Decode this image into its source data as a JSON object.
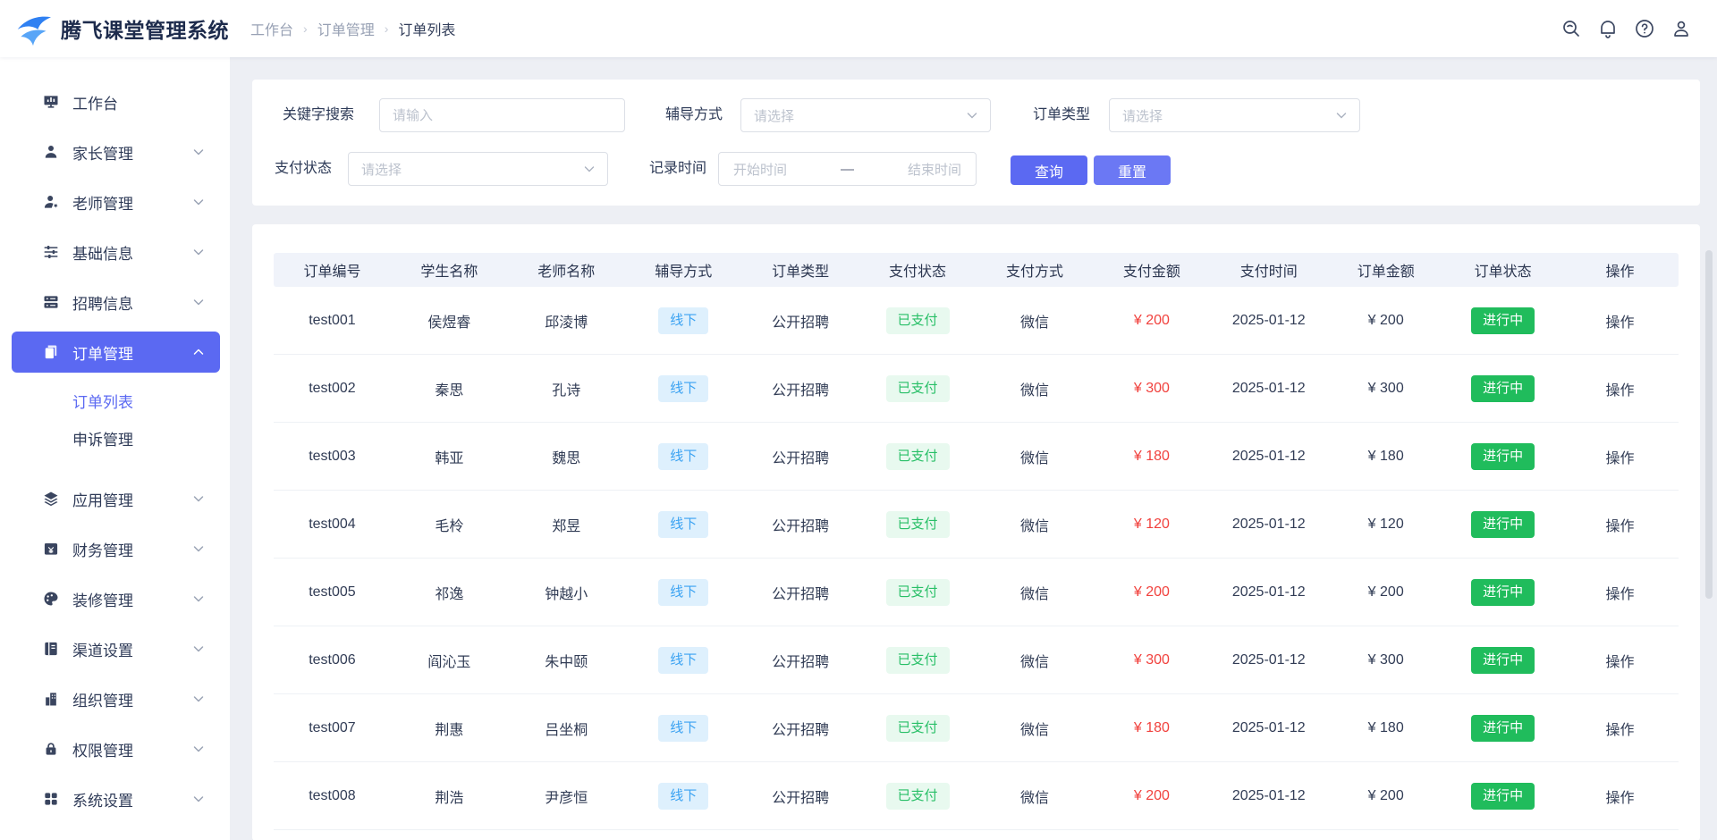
{
  "header": {
    "app_title": "腾飞课堂管理系统",
    "breadcrumb": {
      "items": [
        "工作台",
        "订单管理",
        "订单列表"
      ],
      "separator": "›"
    },
    "icons": [
      "search",
      "bell",
      "help",
      "user"
    ]
  },
  "sidebar": {
    "items": [
      {
        "id": "workbench",
        "label": "工作台",
        "icon": "dashboard",
        "chevron": null,
        "active": false
      },
      {
        "id": "parents",
        "label": "家长管理",
        "icon": "parent",
        "chevron": "down",
        "active": false
      },
      {
        "id": "teachers",
        "label": "老师管理",
        "icon": "teacher",
        "chevron": "down",
        "active": false
      },
      {
        "id": "basic-info",
        "label": "基础信息",
        "icon": "sliders",
        "chevron": "down",
        "active": false
      },
      {
        "id": "recruit-info",
        "label": "招聘信息",
        "icon": "server",
        "chevron": "down",
        "active": false
      },
      {
        "id": "orders",
        "label": "订单管理",
        "icon": "order",
        "chevron": "up",
        "active": true,
        "children": [
          {
            "id": "order-list",
            "label": "订单列表",
            "active": true
          },
          {
            "id": "appeals",
            "label": "申诉管理",
            "active": false
          }
        ]
      },
      {
        "id": "apps",
        "label": "应用管理",
        "icon": "layers",
        "chevron": "down",
        "active": false
      },
      {
        "id": "finance",
        "label": "财务管理",
        "icon": "finance",
        "chevron": "down",
        "active": false
      },
      {
        "id": "decoration",
        "label": "装修管理",
        "icon": "palette",
        "chevron": "down",
        "active": false
      },
      {
        "id": "channels",
        "label": "渠道设置",
        "icon": "channel",
        "chevron": "down",
        "active": false
      },
      {
        "id": "organization",
        "label": "组织管理",
        "icon": "org",
        "chevron": "down",
        "active": false
      },
      {
        "id": "permissions",
        "label": "权限管理",
        "icon": "lock",
        "chevron": "down",
        "active": false
      },
      {
        "id": "system",
        "label": "系统设置",
        "icon": "grid",
        "chevron": "down",
        "active": false
      }
    ]
  },
  "filters": {
    "keyword": {
      "label": "关键字搜索",
      "placeholder": "请输入"
    },
    "tutor_mode": {
      "label": "辅导方式",
      "placeholder": "请选择"
    },
    "order_type": {
      "label": "订单类型",
      "placeholder": "请选择"
    },
    "pay_status": {
      "label": "支付状态",
      "placeholder": "请选择"
    },
    "record_time": {
      "label": "记录时间",
      "start_placeholder": "开始时间",
      "separator": "—",
      "end_placeholder": "结束时间"
    },
    "search_label": "查询",
    "reset_label": "重置"
  },
  "table": {
    "columns": [
      "订单编号",
      "学生名称",
      "老师名称",
      "辅导方式",
      "订单类型",
      "支付状态",
      "支付方式",
      "支付金额",
      "支付时间",
      "订单金额",
      "订单状态",
      "操作"
    ],
    "rows": [
      {
        "order_no": "test001",
        "student": "侯煜睿",
        "teacher": "邱淩博",
        "tutor_mode": "线下",
        "order_type": "公开招聘",
        "pay_status": "已支付",
        "pay_method": "微信",
        "pay_amount": "¥ 200",
        "pay_time": "2025-01-12",
        "order_amount": "¥ 200",
        "order_status": "进行中",
        "action": "操作"
      },
      {
        "order_no": "test002",
        "student": "秦思",
        "teacher": "孔诗",
        "tutor_mode": "线下",
        "order_type": "公开招聘",
        "pay_status": "已支付",
        "pay_method": "微信",
        "pay_amount": "¥ 300",
        "pay_time": "2025-01-12",
        "order_amount": "¥ 300",
        "order_status": "进行中",
        "action": "操作"
      },
      {
        "order_no": "test003",
        "student": "韩亚",
        "teacher": "魏思",
        "tutor_mode": "线下",
        "order_type": "公开招聘",
        "pay_status": "已支付",
        "pay_method": "微信",
        "pay_amount": "¥ 180",
        "pay_time": "2025-01-12",
        "order_amount": "¥ 180",
        "order_status": "进行中",
        "action": "操作"
      },
      {
        "order_no": "test004",
        "student": "毛柃",
        "teacher": "郑昱",
        "tutor_mode": "线下",
        "order_type": "公开招聘",
        "pay_status": "已支付",
        "pay_method": "微信",
        "pay_amount": "¥ 120",
        "pay_time": "2025-01-12",
        "order_amount": "¥ 120",
        "order_status": "进行中",
        "action": "操作"
      },
      {
        "order_no": "test005",
        "student": "祁逸",
        "teacher": "钟越小",
        "tutor_mode": "线下",
        "order_type": "公开招聘",
        "pay_status": "已支付",
        "pay_method": "微信",
        "pay_amount": "¥ 200",
        "pay_time": "2025-01-12",
        "order_amount": "¥ 200",
        "order_status": "进行中",
        "action": "操作"
      },
      {
        "order_no": "test006",
        "student": "阎沁玉",
        "teacher": "朱中颐",
        "tutor_mode": "线下",
        "order_type": "公开招聘",
        "pay_status": "已支付",
        "pay_method": "微信",
        "pay_amount": "¥ 300",
        "pay_time": "2025-01-12",
        "order_amount": "¥ 300",
        "order_status": "进行中",
        "action": "操作"
      },
      {
        "order_no": "test007",
        "student": "荆惠",
        "teacher": "吕坐桐",
        "tutor_mode": "线下",
        "order_type": "公开招聘",
        "pay_status": "已支付",
        "pay_method": "微信",
        "pay_amount": "¥ 180",
        "pay_time": "2025-01-12",
        "order_amount": "¥ 180",
        "order_status": "进行中",
        "action": "操作"
      },
      {
        "order_no": "test008",
        "student": "荆浩",
        "teacher": "尹彦恒",
        "tutor_mode": "线下",
        "order_type": "公开招聘",
        "pay_status": "已支付",
        "pay_method": "微信",
        "pay_amount": "¥ 200",
        "pay_time": "2025-01-12",
        "order_amount": "¥ 200",
        "order_status": "进行中",
        "action": "操作"
      }
    ]
  },
  "colors": {
    "primary": "#5b69f2",
    "tag_blue_bg": "#def0fd",
    "tag_blue_text": "#3aa2f2",
    "tag_green_bg": "#e8f9ef",
    "tag_green_text": "#28bf67",
    "status_green": "#20bc5c",
    "amount_red": "#f1413d"
  }
}
